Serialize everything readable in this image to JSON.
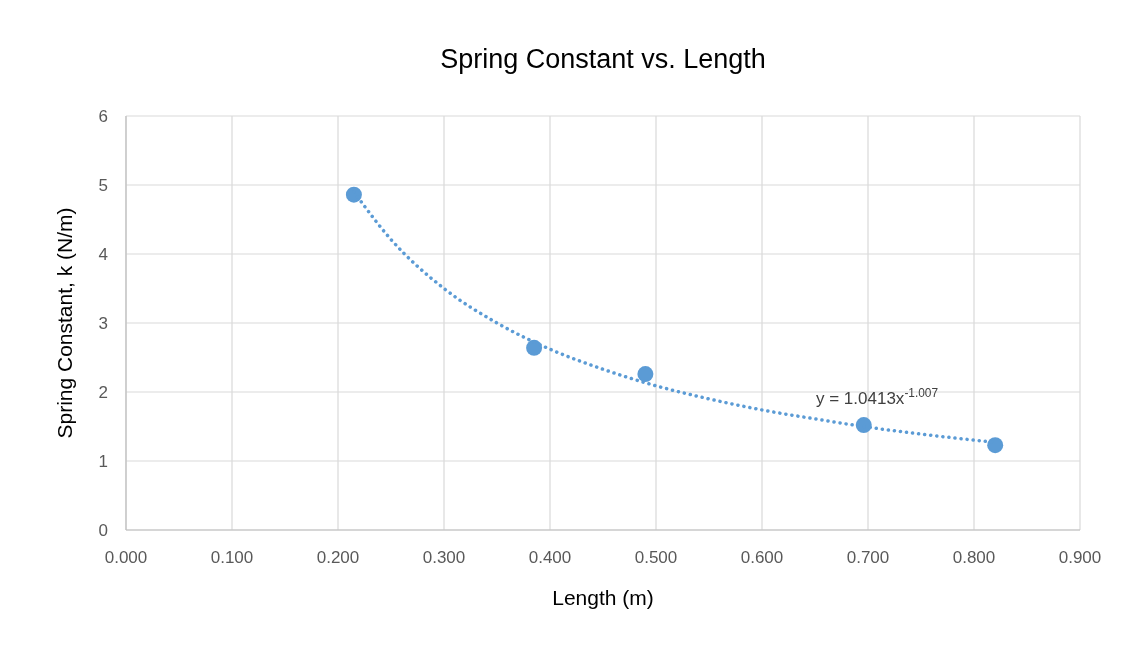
{
  "chart_data": {
    "type": "scatter",
    "title": "Spring Constant vs. Length",
    "xlabel": "Length (m)",
    "ylabel": "Spring Constant, k (N/m)",
    "xlim": [
      0,
      0.9
    ],
    "xticks": [
      {
        "value": 0,
        "label": "0.000"
      },
      {
        "value": 0.1,
        "label": "0.100"
      },
      {
        "value": 0.2,
        "label": "0.200"
      },
      {
        "value": 0.3,
        "label": "0.300"
      },
      {
        "value": 0.4,
        "label": "0.400"
      },
      {
        "value": 0.5,
        "label": "0.500"
      },
      {
        "value": 0.6,
        "label": "0.600"
      },
      {
        "value": 0.7,
        "label": "0.700"
      },
      {
        "value": 0.8,
        "label": "0.800"
      },
      {
        "value": 0.9,
        "label": "0.900"
      }
    ],
    "ylim": [
      0,
      6
    ],
    "yticks": [
      0,
      1,
      2,
      3,
      4,
      5,
      6
    ],
    "grid": true,
    "annotations": [
      {
        "text": "y = 1.0413x$^{-1.007}$",
        "x": 0.7,
        "y": 1.49
      }
    ],
    "series": [
      {
        "color": "#5b9bd5",
        "marker": "circle",
        "x": [
          0.215,
          0.385,
          0.49,
          0.696,
          0.82
        ],
        "values": [
          4.86,
          2.64,
          2.26,
          1.52,
          1.23
        ]
      },
      {
        "type": "line",
        "color": "#5b9bd5",
        "line_style": "dotted",
        "x": [
          0.215,
          0.25,
          0.3,
          0.35,
          0.4,
          0.45,
          0.5,
          0.55,
          0.6,
          0.65,
          0.7,
          0.75,
          0.82
        ],
        "values": [
          4.9,
          4.21,
          3.5,
          3.0,
          2.62,
          2.33,
          2.09,
          1.9,
          1.74,
          1.61,
          1.49,
          1.39,
          1.27
        ]
      }
    ]
  }
}
